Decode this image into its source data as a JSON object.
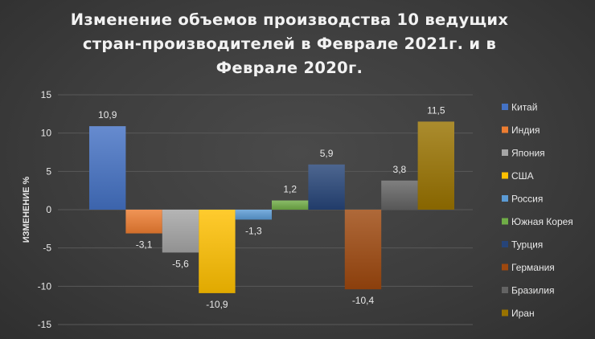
{
  "chart_data": {
    "type": "bar",
    "title": "Изменение объемов производства 10 ведущих стран-производителей в Феврале 2021г. и в Феврале 2020г.",
    "ylabel": "ИЗМЕНЕНИЕ %",
    "xlabel": "",
    "ylim": [
      -15,
      15
    ],
    "yticks": [
      15,
      10,
      5,
      0,
      -5,
      -10,
      -15
    ],
    "grid": true,
    "legend_position": "right",
    "categories": [
      "Китай",
      "Индия",
      "Япония",
      "США",
      "Россия",
      "Южная Корея",
      "Турция",
      "Германия",
      "Бразилия",
      "Иран"
    ],
    "values": [
      10.9,
      -3.1,
      -5.6,
      -10.9,
      -1.3,
      1.2,
      5.9,
      -10.4,
      3.8,
      11.5
    ],
    "value_labels": [
      "10,9",
      "-3,1",
      "-5,6",
      "-10,9",
      "-1,3",
      "1,2",
      "5,9",
      "-10,4",
      "3,8",
      "11,5"
    ],
    "colors": [
      "#4472C4",
      "#ED7D31",
      "#A5A5A5",
      "#FFC000",
      "#5B9BD5",
      "#70AD47",
      "#264478",
      "#9E480E",
      "#636363",
      "#997300"
    ]
  }
}
